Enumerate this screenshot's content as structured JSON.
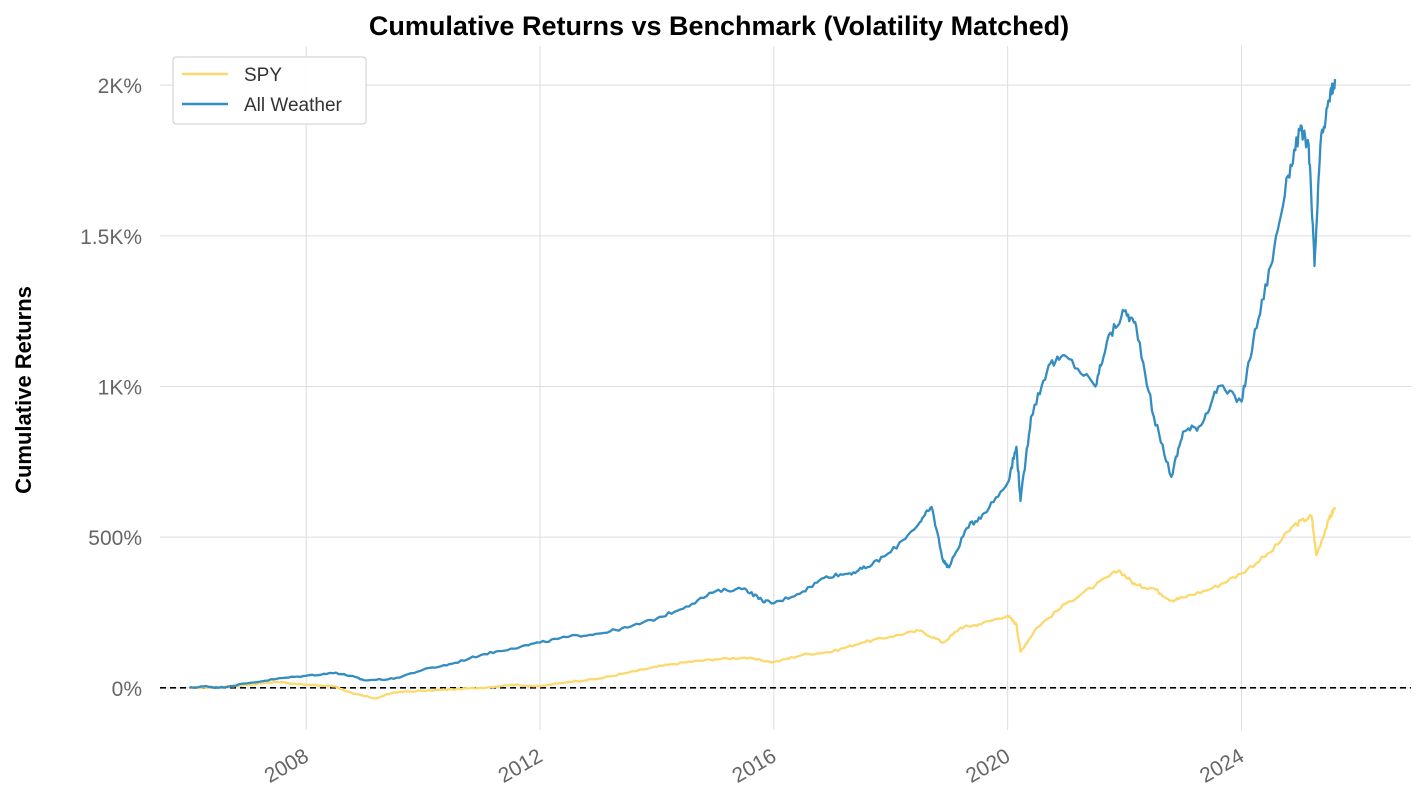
{
  "chart_data": {
    "type": "line",
    "title": "Cumulative Returns vs Benchmark (Volatility Matched)",
    "xlabel": "",
    "ylabel": "Cumulative Returns",
    "x_unit": "year",
    "xlim": [
      2005.5,
      2026.9
    ],
    "ylim": [
      -140,
      2130
    ],
    "x_ticks": [
      2008,
      2012,
      2016,
      2020,
      2024
    ],
    "x_tick_labels": [
      "2008",
      "2012",
      "2016",
      "2020",
      "2024"
    ],
    "y_ticks": [
      0,
      500,
      1000,
      1500,
      2000
    ],
    "y_tick_labels": [
      "0%",
      "500%",
      "1K%",
      "1.5K%",
      "2K%"
    ],
    "grid": true,
    "legend_position": "top-left",
    "reference_line": {
      "y": 0,
      "style": "dashed",
      "color": "#000000"
    },
    "series": [
      {
        "name": "SPY",
        "color": "#fcd96d",
        "x": [
          2006.0,
          2006.5,
          2007.0,
          2007.5,
          2008.0,
          2008.5,
          2008.8,
          2009.2,
          2009.5,
          2010.0,
          2010.5,
          2011.0,
          2011.5,
          2012.0,
          2012.5,
          2013.0,
          2013.5,
          2014.0,
          2014.5,
          2015.0,
          2015.5,
          2016.0,
          2016.5,
          2017.0,
          2017.5,
          2018.0,
          2018.5,
          2018.9,
          2019.2,
          2019.5,
          2020.0,
          2020.15,
          2020.22,
          2020.5,
          2021.0,
          2021.5,
          2021.9,
          2022.2,
          2022.5,
          2022.8,
          2023.0,
          2023.5,
          2024.0,
          2024.5,
          2024.9,
          2025.2,
          2025.28,
          2025.5,
          2025.6
        ],
        "values": [
          0,
          2,
          10,
          20,
          10,
          5,
          -20,
          -35,
          -15,
          -10,
          -5,
          0,
          10,
          5,
          20,
          30,
          50,
          70,
          85,
          95,
          100,
          85,
          110,
          120,
          150,
          170,
          190,
          150,
          200,
          210,
          240,
          210,
          120,
          200,
          280,
          340,
          390,
          340,
          330,
          290,
          300,
          330,
          380,
          450,
          540,
          570,
          440,
          560,
          600
        ]
      },
      {
        "name": "All Weather",
        "color": "#348dc1",
        "x": [
          2006.0,
          2006.3,
          2006.5,
          2007.0,
          2007.5,
          2008.0,
          2008.5,
          2008.75,
          2009.0,
          2009.5,
          2010.0,
          2010.5,
          2011.0,
          2011.5,
          2012.0,
          2012.5,
          2013.0,
          2013.5,
          2014.0,
          2014.5,
          2015.0,
          2015.5,
          2015.8,
          2016.0,
          2016.5,
          2016.9,
          2017.3,
          2017.6,
          2018.0,
          2018.5,
          2018.7,
          2018.9,
          2019.0,
          2019.3,
          2019.6,
          2020.0,
          2020.15,
          2020.22,
          2020.4,
          2020.7,
          2021.0,
          2021.5,
          2021.7,
          2022.0,
          2022.2,
          2022.5,
          2022.8,
          2023.0,
          2023.3,
          2023.6,
          2024.0,
          2024.2,
          2024.5,
          2024.8,
          2025.0,
          2025.15,
          2025.25,
          2025.35,
          2025.5,
          2025.6
        ],
        "values": [
          0,
          5,
          0,
          15,
          30,
          40,
          50,
          40,
          25,
          30,
          60,
          80,
          110,
          130,
          150,
          170,
          180,
          200,
          230,
          270,
          320,
          330,
          290,
          280,
          320,
          370,
          380,
          400,
          450,
          550,
          600,
          420,
          400,
          530,
          580,
          680,
          800,
          620,
          900,
          1070,
          1100,
          1000,
          1150,
          1250,
          1200,
          900,
          700,
          850,
          870,
          1000,
          950,
          1150,
          1400,
          1700,
          1850,
          1800,
          1400,
          1800,
          1950,
          2020
        ]
      }
    ]
  }
}
